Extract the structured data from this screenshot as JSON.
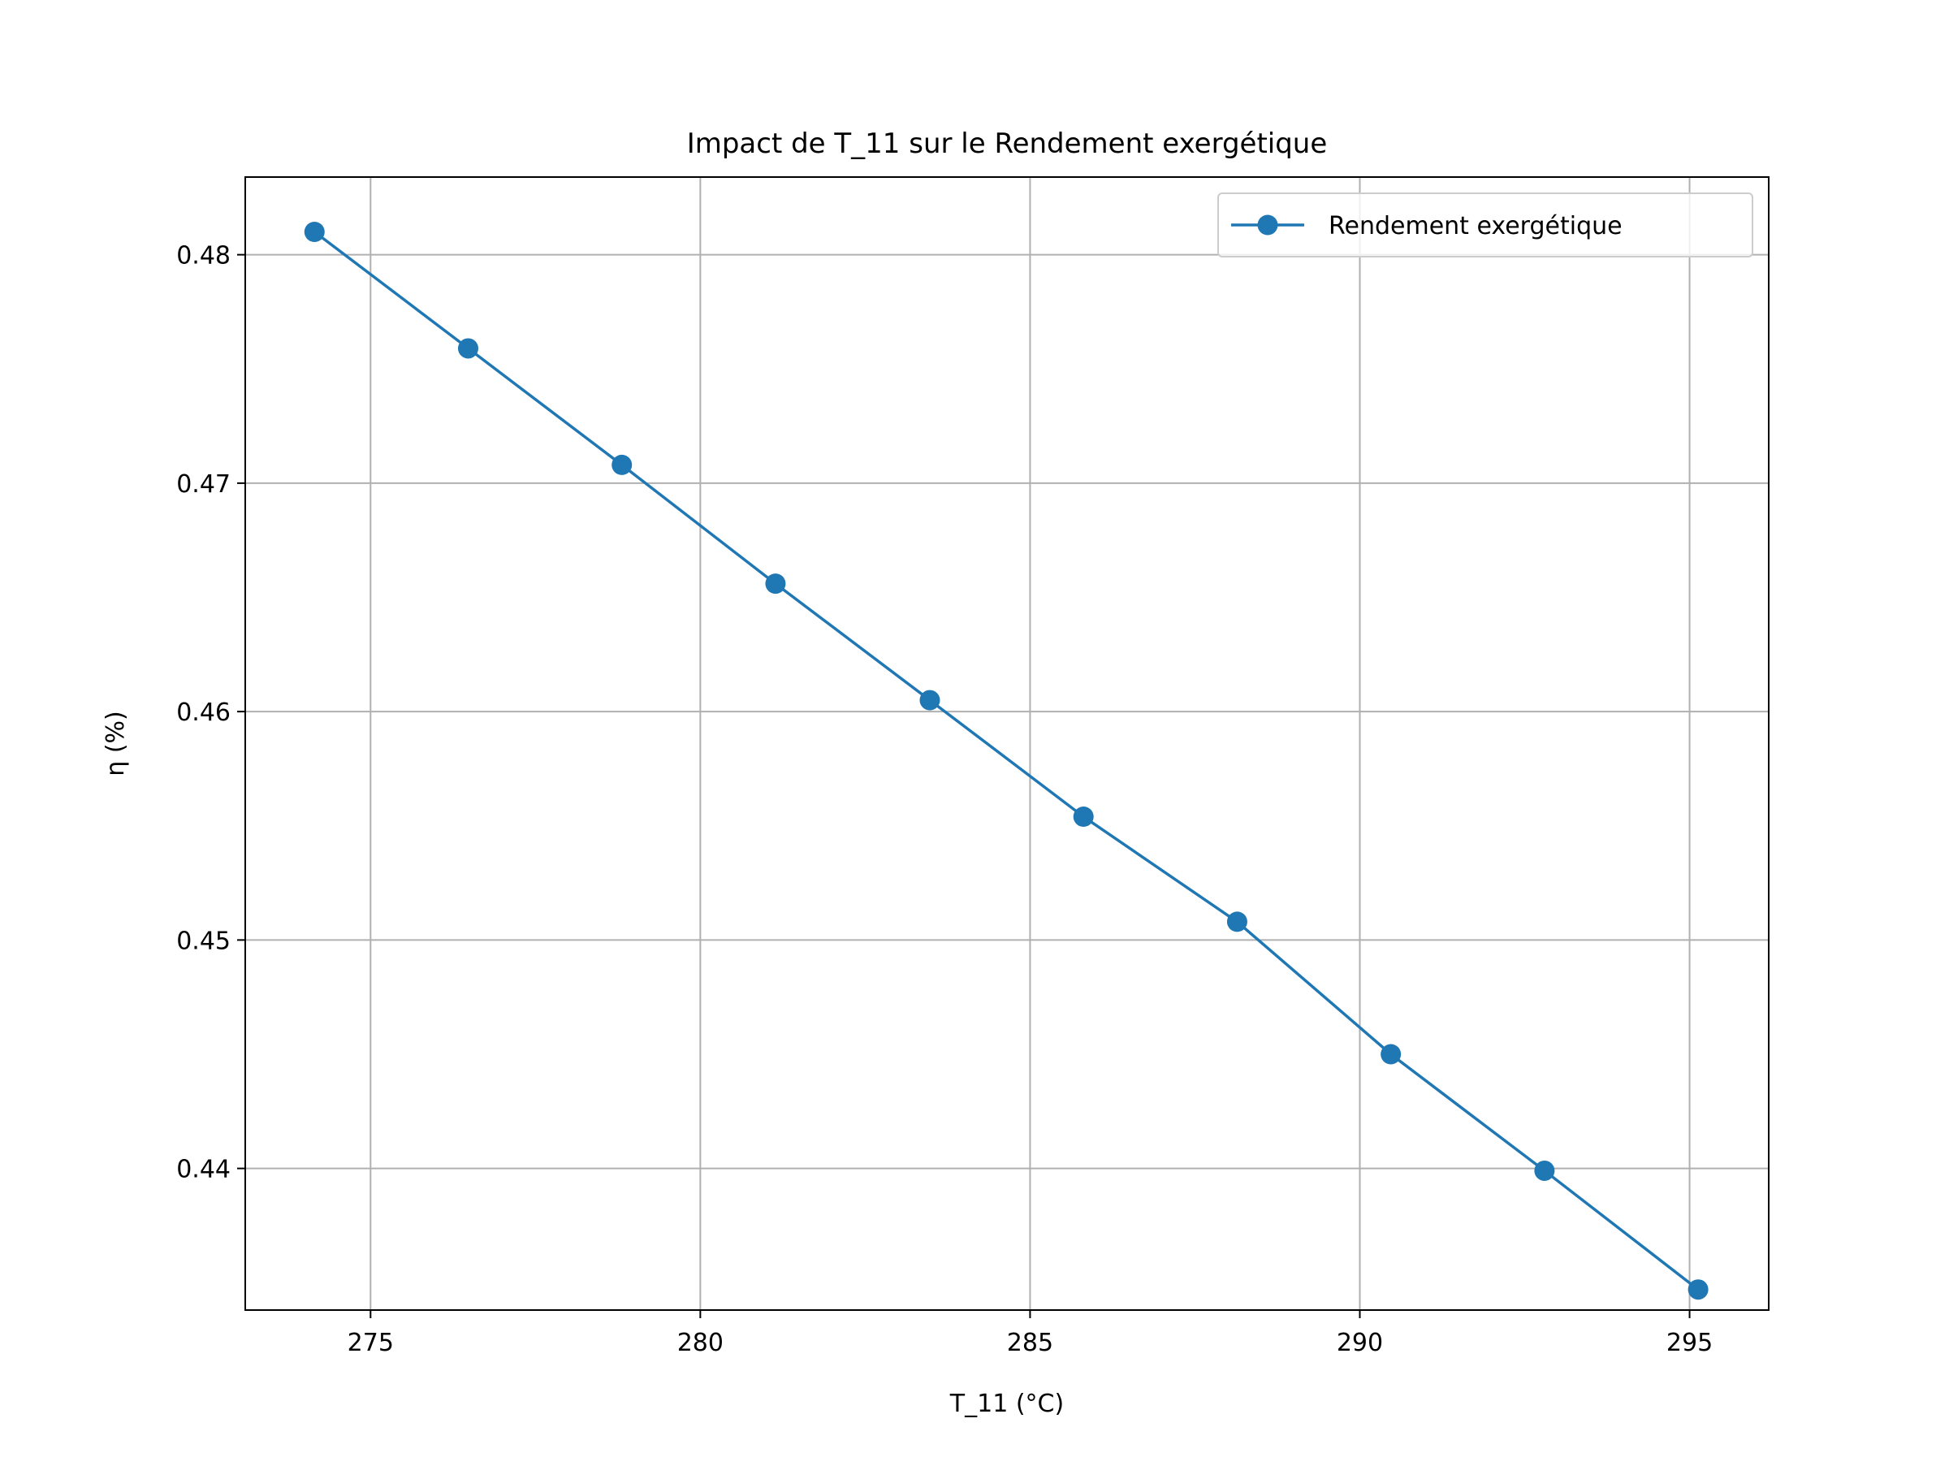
{
  "chart_data": {
    "type": "line",
    "title": "Impact de T_11 sur le Rendement exergétique",
    "xlabel": "T_11 (°C)",
    "ylabel": "η (%)",
    "xlim": [
      273.1,
      296.2
    ],
    "ylim": [
      0.4338,
      0.4834
    ],
    "xticks": [
      275,
      280,
      285,
      290,
      295
    ],
    "yticks": [
      0.44,
      0.45,
      0.46,
      0.47,
      0.48
    ],
    "xtick_labels": [
      "275",
      "280",
      "285",
      "290",
      "295"
    ],
    "ytick_labels": [
      "0.44",
      "0.45",
      "0.46",
      "0.47",
      "0.48"
    ],
    "grid": true,
    "legend_position": "top-right",
    "colors": {
      "series": "#1f77b4",
      "grid": "#b0b0b0",
      "axes": "#000000",
      "legend_border": "#cccccc"
    },
    "series": [
      {
        "name": "Rendement exergétique",
        "marker": "circle",
        "x": [
          274.15,
          276.48,
          278.81,
          281.14,
          283.48,
          285.81,
          288.14,
          290.47,
          292.8,
          295.13
        ],
        "y": [
          0.481,
          0.4759,
          0.4708,
          0.4656,
          0.4605,
          0.4554,
          0.4508,
          0.445,
          0.4399,
          0.4347
        ]
      }
    ]
  }
}
